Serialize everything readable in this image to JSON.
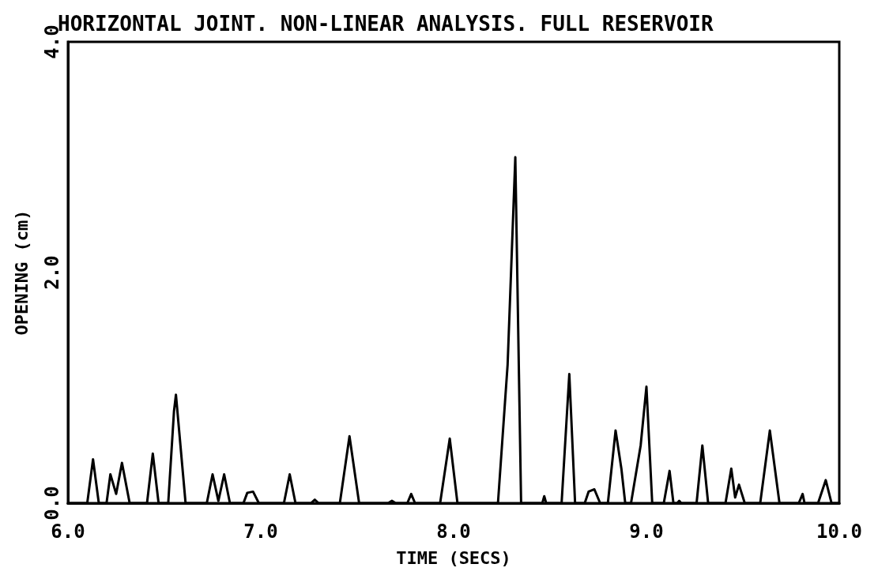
{
  "chart_data": {
    "type": "line",
    "title": "HORIZONTAL JOINT. NON-LINEAR ANALYSIS. FULL RESERVOIR",
    "xlabel": "TIME (SECS)",
    "ylabel": "OPENING (cm)",
    "xlim": [
      6,
      10
    ],
    "xticks": [
      {
        "value": 6,
        "label": "6.0"
      },
      {
        "value": 7,
        "label": "7.0"
      },
      {
        "value": 8,
        "label": "8.0"
      },
      {
        "value": 9,
        "label": "9.0"
      },
      {
        "value": 10,
        "label": "10.0"
      }
    ],
    "ylim": [
      0,
      4
    ],
    "yticks": [
      {
        "value": 0,
        "label": "0.0"
      },
      {
        "value": 2,
        "label": "2.0"
      },
      {
        "value": 4,
        "label": "4.0"
      }
    ],
    "grid": false,
    "marker": "none",
    "line_style": "solid",
    "series": [
      {
        "color": "#000000",
        "x": [
          6.0,
          6.1,
          6.13,
          6.16,
          6.2,
          6.22,
          6.25,
          6.28,
          6.32,
          6.41,
          6.44,
          6.47,
          6.52,
          6.55,
          6.56,
          6.61,
          6.72,
          6.75,
          6.78,
          6.81,
          6.84,
          6.91,
          6.93,
          6.96,
          6.99,
          7.12,
          7.15,
          7.18,
          7.26,
          7.28,
          7.3,
          7.41,
          7.46,
          7.51,
          7.66,
          7.68,
          7.7,
          7.76,
          7.78,
          7.8,
          7.93,
          7.98,
          8.02,
          8.23,
          8.28,
          8.32,
          8.35,
          8.46,
          8.47,
          8.48,
          8.56,
          8.6,
          8.63,
          8.68,
          8.7,
          8.73,
          8.76,
          8.8,
          8.84,
          8.87,
          8.89,
          8.92,
          8.97,
          9.0,
          9.03,
          9.09,
          9.12,
          9.14,
          9.16,
          9.17,
          9.18,
          9.26,
          9.29,
          9.32,
          9.41,
          9.44,
          9.46,
          9.48,
          9.51,
          9.59,
          9.64,
          9.69,
          9.79,
          9.81,
          9.82,
          9.89,
          9.93,
          9.96,
          10.0
        ],
        "values": [
          0,
          0,
          0.38,
          0,
          0,
          0.25,
          0.08,
          0.35,
          0,
          0,
          0.43,
          0,
          0,
          0.8,
          0.94,
          0,
          0,
          0.25,
          0.02,
          0.25,
          0,
          0,
          0.09,
          0.1,
          0,
          0,
          0.25,
          0,
          0,
          0.03,
          0,
          0,
          0.58,
          0,
          0,
          0.02,
          0,
          0,
          0.08,
          0,
          0,
          0.56,
          0,
          0,
          1.2,
          3.0,
          0,
          0,
          0.06,
          0,
          0,
          1.12,
          0,
          0,
          0.1,
          0.12,
          0,
          0,
          0.63,
          0.3,
          0,
          0,
          0.5,
          1.01,
          0,
          0,
          0.28,
          0,
          0,
          0.02,
          0,
          0,
          0.5,
          0,
          0,
          0.3,
          0.05,
          0.16,
          0,
          0,
          0.63,
          0,
          0,
          0.08,
          0,
          0,
          0.2,
          0,
          0
        ]
      }
    ]
  }
}
